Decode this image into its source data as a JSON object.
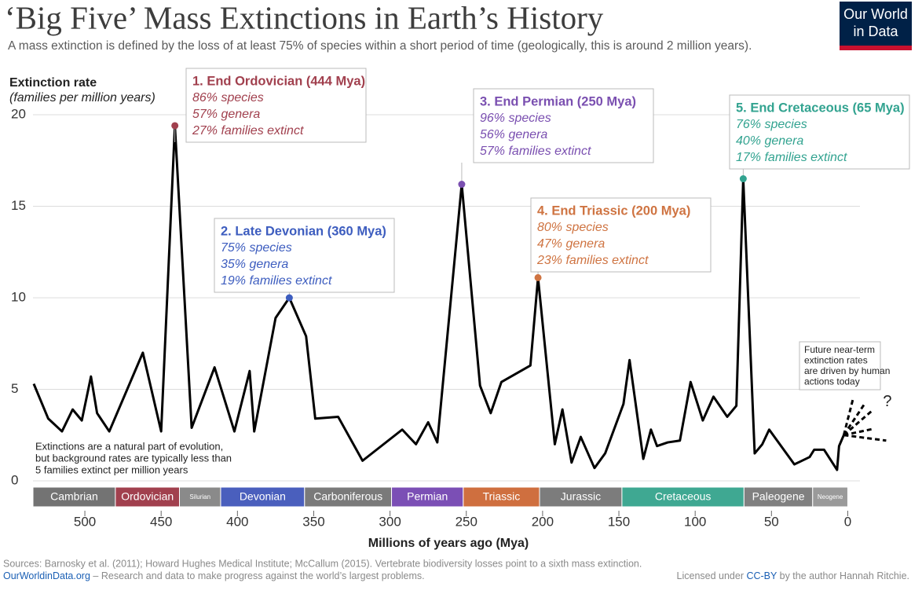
{
  "chart_data": {
    "type": "line",
    "title": "‘Big Five’ Mass Extinctions in Earth’s History",
    "subtitle": "A mass extinction is defined by the loss of at least 75% of species within a short period of time (geologically, this is around 2 million years).",
    "logo": [
      "Our World",
      "in Data"
    ],
    "y_label": "Extinction rate",
    "y_label_sub": "(families per million years)",
    "x_label": "Millions of years ago (Mya)",
    "xlim": [
      534,
      -8
    ],
    "xticks": [
      500,
      450,
      400,
      350,
      300,
      250,
      200,
      150,
      100,
      50,
      0
    ],
    "ylim": [
      0,
      20
    ],
    "yticks": [
      0,
      5,
      10,
      15,
      20
    ],
    "grid": true,
    "series": [
      {
        "name": "Extinction rate",
        "color": "#000000",
        "x": [
          533.5,
          524,
          515,
          508,
          502,
          496,
          492,
          484,
          462,
          450,
          441,
          430,
          415,
          402,
          392,
          389,
          375,
          366,
          355,
          349,
          334,
          318,
          292,
          283,
          275,
          269,
          253,
          241,
          234,
          227,
          208,
          203,
          192,
          187,
          181,
          175,
          166,
          159,
          147,
          143,
          134,
          129,
          125,
          118,
          110,
          103,
          95,
          88,
          79,
          73,
          68.5,
          61,
          56,
          51.5,
          35,
          25,
          22,
          15.5,
          7,
          5.7,
          2.6
        ],
        "values": [
          5.3,
          3.4,
          2.7,
          3.9,
          3.3,
          5.7,
          3.7,
          2.7,
          7.0,
          2.7,
          19.4,
          2.9,
          6.2,
          2.7,
          6.0,
          2.7,
          8.9,
          10.0,
          7.9,
          3.4,
          3.5,
          1.1,
          2.8,
          2.0,
          3.2,
          2.1,
          16.2,
          5.2,
          3.7,
          5.4,
          6.3,
          11.1,
          2.0,
          3.9,
          1.0,
          2.4,
          0.7,
          1.5,
          4.2,
          6.6,
          1.2,
          2.8,
          1.9,
          2.1,
          2.2,
          5.4,
          3.3,
          4.6,
          3.5,
          4.1,
          16.5,
          1.5,
          2.0,
          2.8,
          0.9,
          1.3,
          1.7,
          1.7,
          0.6,
          1.9,
          2.5
        ]
      }
    ],
    "events": [
      {
        "title": "1. End Ordovician (444 Mya)",
        "lines": [
          "86% species",
          "57% genera",
          "27% families extinct"
        ],
        "x": 441,
        "y": 19.4,
        "color": "#a1404e"
      },
      {
        "title": "2. Late Devonian (360 Mya)",
        "lines": [
          "75% species",
          "35% genera",
          "19% families extinct"
        ],
        "x": 366,
        "y": 10.0,
        "color": "#3d5dbf"
      },
      {
        "title": "3. End Permian (250 Mya)",
        "lines": [
          "96% species",
          "56% genera",
          "57% families extinct"
        ],
        "x": 253,
        "y": 16.2,
        "color": "#7a4fb0"
      },
      {
        "title": "4. End Triassic (200 Mya)",
        "lines": [
          "80% species",
          "47% genera",
          "23% families extinct"
        ],
        "x": 203,
        "y": 11.1,
        "color": "#cf7442"
      },
      {
        "title": "5. End Cretaceous (65 Mya)",
        "lines": [
          "76% species",
          "40% genera",
          "17% families extinct"
        ],
        "x": 68.5,
        "y": 16.5,
        "color": "#32a390"
      }
    ],
    "periods": [
      {
        "name": "Cambrian",
        "start": 534,
        "end": 480,
        "color": "#737373"
      },
      {
        "name": "Ordovician",
        "start": 480,
        "end": 438,
        "color": "#a1404e"
      },
      {
        "name": "Silurian",
        "start": 438,
        "end": 411,
        "color": "#8a8a8a"
      },
      {
        "name": "Devonian",
        "start": 411,
        "end": 356,
        "color": "#4a5fbd"
      },
      {
        "name": "Carboniferous",
        "start": 356,
        "end": 299,
        "color": "#7a7a7a"
      },
      {
        "name": "Permian",
        "start": 299,
        "end": 252,
        "color": "#7b4fb5"
      },
      {
        "name": "Triassic",
        "start": 252,
        "end": 202,
        "color": "#cf6f3f"
      },
      {
        "name": "Jurassic",
        "start": 202,
        "end": 148,
        "color": "#7c7c7c"
      },
      {
        "name": "Cretaceous",
        "start": 148,
        "end": 68,
        "color": "#3fa892"
      },
      {
        "name": "Paleogene",
        "start": 68,
        "end": 23,
        "color": "#808080"
      },
      {
        "name": "Neogene",
        "start": 23,
        "end": 0,
        "color": "#9a9a9a"
      }
    ],
    "background_note": [
      "Extinctions are a natural part of evolution,",
      "but background rates are typically less than",
      "5 families extinct per million years"
    ],
    "future_note": [
      "Future near-term",
      "extinction rates",
      "are driven by human",
      "actions today"
    ],
    "future_mark": "?",
    "sources": "Sources: Barnosky et al. (2011); Howard Hughes Medical Institute; McCallum (2015). Vertebrate biodiversity losses point to a sixth mass extinction.",
    "footer_link": "OurWorldinData.org",
    "footer_text": " – Research and data to make progress against the world’s largest problems.",
    "license_pre": "Licensed under ",
    "license_link": "CC-BY",
    "license_post": " by the author Hannah Ritchie."
  }
}
